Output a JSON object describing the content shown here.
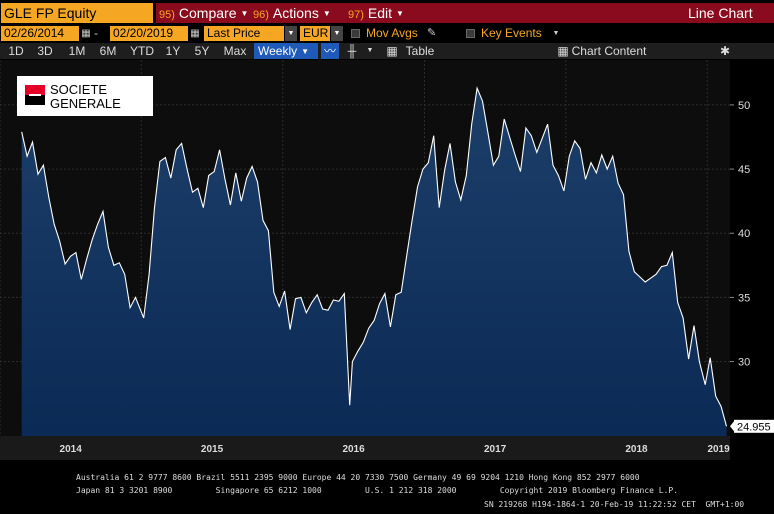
{
  "toolbar": {
    "ticker": "GLE FP Equity",
    "compare": {
      "num": "95)",
      "label": "Compare"
    },
    "actions": {
      "num": "96)",
      "label": "Actions"
    },
    "edit": {
      "num": "97)",
      "label": "Edit"
    },
    "chart_type": "Line Chart"
  },
  "controls": {
    "start_date": "02/26/2014",
    "end_date": "02/20/2019",
    "field": "Last Price",
    "currency": "EUR",
    "mov_avgs": "Mov Avgs",
    "key_events": "Key Events",
    "chart_content": "Chart Content"
  },
  "ranges": [
    "1D",
    "3D",
    "1M",
    "6M",
    "YTD",
    "1Y",
    "5Y",
    "Max"
  ],
  "frequency": "Weekly",
  "table_label": "Table",
  "logo": {
    "line1": "SOCIETE",
    "line2": "GENERALE"
  },
  "colors": {
    "accent": "#f5a623",
    "menu_bar": "#8b0b1e",
    "line": "#ffffff",
    "fill_top": "#1c3f6a",
    "fill_bottom": "#0b2a55",
    "last_price_box": "#ffffff"
  },
  "chart_data": {
    "type": "area",
    "title": "",
    "xlabel": "",
    "ylabel": "",
    "x_tick_labels": [
      "2014",
      "2015",
      "2016",
      "2017",
      "2018",
      "2019"
    ],
    "y_ticks": [
      30,
      35,
      40,
      45,
      50
    ],
    "ylim": [
      24.2,
      53.5
    ],
    "grid": true,
    "last_value": "24.955",
    "series": [
      {
        "frequency": "weekly",
        "x": [
          "2014-02-26",
          "2014-03-12",
          "2014-03-26",
          "2014-04-09",
          "2014-04-23",
          "2014-05-07",
          "2014-05-21",
          "2014-06-04",
          "2014-06-18",
          "2014-07-02",
          "2014-07-16",
          "2014-07-30",
          "2014-08-13",
          "2014-08-27",
          "2014-09-10",
          "2014-09-24",
          "2014-10-08",
          "2014-10-22",
          "2014-11-05",
          "2014-11-19",
          "2014-12-03",
          "2014-12-17",
          "2015-01-07",
          "2015-01-21",
          "2015-02-04",
          "2015-02-18",
          "2015-03-04",
          "2015-03-18",
          "2015-04-01",
          "2015-04-15",
          "2015-04-29",
          "2015-05-13",
          "2015-05-27",
          "2015-06-10",
          "2015-06-24",
          "2015-07-08",
          "2015-07-22",
          "2015-08-05",
          "2015-08-19",
          "2015-09-02",
          "2015-09-16",
          "2015-09-30",
          "2015-10-14",
          "2015-10-28",
          "2015-11-11",
          "2015-11-25",
          "2015-12-09",
          "2015-12-23",
          "2016-01-06",
          "2016-01-20",
          "2016-02-03",
          "2016-02-17",
          "2016-03-02",
          "2016-03-16",
          "2016-03-30",
          "2016-04-13",
          "2016-04-27",
          "2016-05-11",
          "2016-05-25",
          "2016-06-08",
          "2016-06-22",
          "2016-06-29",
          "2016-07-13",
          "2016-07-27",
          "2016-08-10",
          "2016-08-24",
          "2016-09-07",
          "2016-09-21",
          "2016-10-05",
          "2016-10-19",
          "2016-11-02",
          "2016-11-16",
          "2016-11-30",
          "2016-12-14",
          "2016-12-28",
          "2017-01-11",
          "2017-01-25",
          "2017-02-08",
          "2017-02-22",
          "2017-03-08",
          "2017-03-22",
          "2017-04-05",
          "2017-04-19",
          "2017-05-03",
          "2017-05-17",
          "2017-05-31",
          "2017-06-14",
          "2017-06-28",
          "2017-07-12",
          "2017-07-26",
          "2017-08-09",
          "2017-08-23",
          "2017-09-06",
          "2017-09-20",
          "2017-10-04",
          "2017-10-18",
          "2017-11-01",
          "2017-11-15",
          "2017-11-29",
          "2017-12-13",
          "2017-12-27",
          "2018-01-10",
          "2018-01-24",
          "2018-02-07",
          "2018-02-21",
          "2018-03-07",
          "2018-03-21",
          "2018-04-04",
          "2018-04-18",
          "2018-05-02",
          "2018-05-16",
          "2018-05-30",
          "2018-06-13",
          "2018-06-27",
          "2018-07-11",
          "2018-07-25",
          "2018-08-08",
          "2018-08-22",
          "2018-09-05",
          "2018-09-19",
          "2018-10-03",
          "2018-10-17",
          "2018-10-31",
          "2018-11-14",
          "2018-11-28",
          "2018-12-12",
          "2018-12-27",
          "2019-01-09",
          "2019-01-23",
          "2019-02-06",
          "2019-02-20"
        ],
        "values": [
          47.9,
          46.0,
          47.1,
          44.6,
          45.3,
          42.8,
          40.7,
          39.4,
          37.6,
          38.2,
          38.5,
          36.4,
          38.0,
          39.5,
          40.7,
          41.7,
          38.9,
          37.5,
          37.7,
          36.8,
          34.2,
          35.0,
          33.4,
          36.8,
          42.0,
          45.6,
          45.9,
          44.3,
          46.5,
          47.0,
          45.0,
          43.2,
          43.5,
          42.0,
          44.5,
          44.8,
          46.5,
          44.2,
          42.2,
          44.7,
          42.5,
          44.3,
          45.2,
          44.0,
          41.0,
          40.2,
          35.4,
          34.3,
          35.5,
          32.5,
          34.9,
          35.0,
          33.8,
          34.6,
          35.2,
          34.1,
          34.0,
          34.8,
          34.7,
          35.3,
          26.6,
          30.0,
          30.8,
          31.5,
          32.6,
          33.2,
          34.5,
          35.3,
          32.7,
          35.2,
          35.4,
          38.2,
          41.0,
          43.6,
          45.0,
          45.5,
          47.6,
          42.0,
          44.9,
          47.0,
          44.0,
          42.6,
          44.5,
          48.5,
          51.3,
          50.3,
          47.8,
          45.3,
          46.0,
          48.9,
          47.5,
          46.1,
          44.8,
          48.2,
          47.6,
          46.3,
          47.4,
          48.5,
          45.3,
          44.5,
          43.3,
          46.0,
          47.2,
          46.6,
          44.2,
          45.5,
          44.7,
          46.1,
          45.0,
          46.0,
          43.9,
          43.0,
          38.6,
          37.0,
          36.6,
          36.2,
          36.5,
          36.8,
          37.4,
          37.5,
          38.5,
          34.6,
          33.4,
          30.2,
          32.8,
          30.0,
          28.2,
          30.3,
          27.3,
          26.5,
          24.955
        ]
      }
    ]
  },
  "footer": {
    "line1": "Australia 61 2 9777 8600 Brazil 5511 2395 9000 Europe 44 20 7330 7500 Germany 49 69 9204 1210 Hong Kong 852 2977 6000",
    "line2": "Japan 81 3 3201 8900         Singapore 65 6212 1000         U.S. 1 212 318 2000         Copyright 2019 Bloomberg Finance L.P.",
    "line3": "SN 219268 H194-1864-1 20-Feb-19 11:22:52 CET  GMT+1:00"
  }
}
